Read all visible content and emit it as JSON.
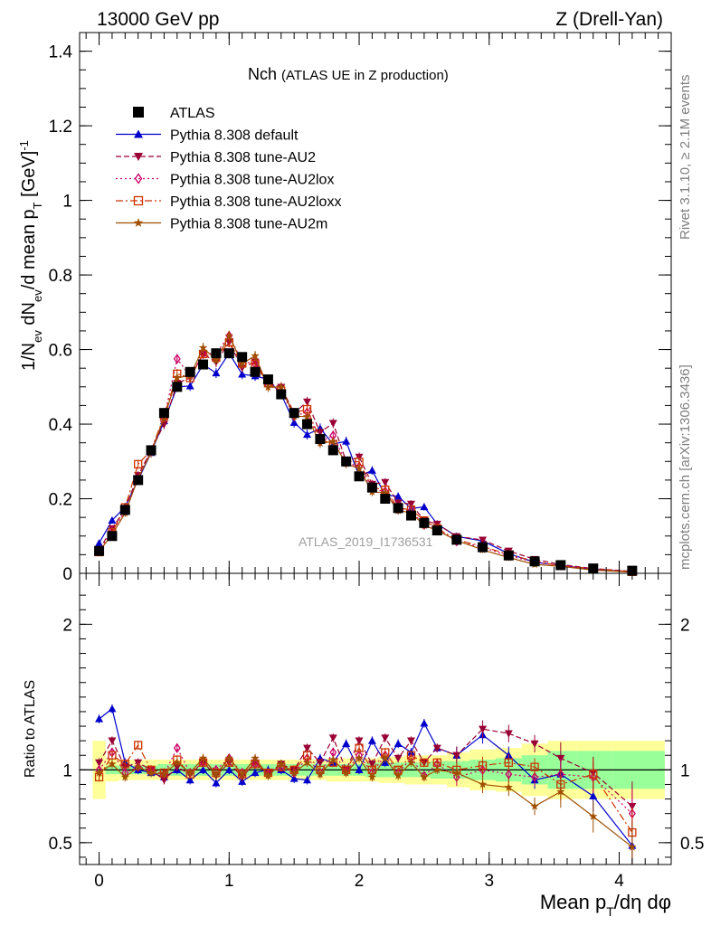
{
  "header": {
    "left": "13000 GeV pp",
    "right": "Z (Drell-Yan)"
  },
  "side_labels": {
    "rivet": "Rivet 3.1.10, ≥ 2.1M events",
    "mcplots": "mcplots.cern.ch [arXiv:1306.3436]"
  },
  "watermark": "ATLAS_2019_I1736531",
  "chart_data": {
    "type": "scatter",
    "title_main": "Nch",
    "title_sub": "(ATLAS UE in Z production)",
    "xlabel": "Mean p_T/dη dφ",
    "ylabel": "1/N_ev dN_ev/d mean p_T [GeV]^-1",
    "ratio_ylabel": "Ratio to ATLAS",
    "xlim": [
      -0.15,
      4.4
    ],
    "ylim": [
      0,
      1.45
    ],
    "ratio_ylim": [
      0.35,
      2.35
    ],
    "x_ticks": [
      "0",
      "1",
      "2",
      "3",
      "4"
    ],
    "y_ticks": [
      "0",
      "0.2",
      "0.4",
      "0.6",
      "0.8",
      "1",
      "1.2",
      "1.4"
    ],
    "ratio_ticks": [
      "0.5",
      "1",
      "2"
    ],
    "legend": [
      "ATLAS",
      "Pythia 8.308 default",
      "Pythia 8.308 tune-AU2",
      "Pythia 8.308 tune-AU2lox",
      "Pythia 8.308 tune-AU2loxx",
      "Pythia 8.308 tune-AU2m"
    ],
    "x": [
      0.0,
      0.1,
      0.2,
      0.3,
      0.4,
      0.5,
      0.6,
      0.7,
      0.8,
      0.9,
      1.0,
      1.1,
      1.2,
      1.3,
      1.4,
      1.5,
      1.6,
      1.7,
      1.8,
      1.9,
      2.0,
      2.1,
      2.2,
      2.3,
      2.4,
      2.5,
      2.6,
      2.75,
      2.95,
      3.15,
      3.35,
      3.55,
      3.8,
      4.1
    ],
    "data": [
      0.06,
      0.1,
      0.17,
      0.25,
      0.33,
      0.43,
      0.5,
      0.54,
      0.56,
      0.59,
      0.59,
      0.58,
      0.54,
      0.52,
      0.48,
      0.43,
      0.4,
      0.36,
      0.33,
      0.3,
      0.26,
      0.23,
      0.2,
      0.175,
      0.155,
      0.135,
      0.115,
      0.09,
      0.07,
      0.048,
      0.032,
      0.022,
      0.013,
      0.007
    ],
    "series": [
      {
        "name": "Pythia 8.308 default",
        "color": "#0000cc",
        "marker": "triangle-up",
        "dash": "solid",
        "ratio": [
          1.35,
          1.42,
          1.05,
          1.0,
          0.98,
          0.95,
          1.0,
          0.93,
          1.0,
          0.91,
          1.0,
          0.92,
          0.98,
          1.0,
          1.0,
          0.94,
          0.93,
          1.08,
          1.05,
          1.18,
          1.0,
          1.2,
          1.05,
          1.18,
          1.12,
          1.32,
          1.15,
          1.1,
          1.24,
          1.1,
          0.93,
          0.97,
          0.82,
          0.48
        ]
      },
      {
        "name": "Pythia 8.308 tune-AU2",
        "color": "#990033",
        "marker": "triangle-down",
        "dash": "dashed",
        "ratio": [
          1.05,
          1.2,
          1.02,
          1.05,
          1.0,
          0.93,
          1.02,
          0.97,
          1.05,
          0.96,
          1.05,
          0.95,
          1.05,
          0.98,
          1.04,
          1.0,
          1.15,
          1.05,
          1.22,
          1.0,
          1.2,
          1.04,
          1.22,
          1.08,
          1.2,
          1.05,
          1.15,
          1.1,
          1.28,
          1.25,
          1.18,
          1.08,
          0.98,
          0.75
        ]
      },
      {
        "name": "Pythia 8.308 tune-AU2lox",
        "color": "#cc0066",
        "marker": "diamond-open",
        "dash": "dotted",
        "ratio": [
          1.0,
          1.12,
          0.98,
          1.02,
          1.0,
          0.97,
          1.15,
          0.98,
          1.05,
          1.0,
          1.08,
          0.98,
          1.04,
          0.97,
          1.02,
          0.98,
          1.08,
          0.98,
          1.12,
          0.99,
          1.1,
          0.98,
          1.1,
          0.98,
          1.08,
          0.96,
          1.04,
          0.95,
          1.0,
          0.97,
          0.95,
          0.97,
          0.95,
          0.7
        ]
      },
      {
        "name": "Pythia 8.308 tune-AU2loxx",
        "color": "#cc3300",
        "marker": "square-open",
        "dash": "dashdot",
        "ratio": [
          0.95,
          1.1,
          1.04,
          1.17,
          1.0,
          0.98,
          1.07,
          0.97,
          1.05,
          0.98,
          1.05,
          0.97,
          1.04,
          0.98,
          1.02,
          1.0,
          1.1,
          1.0,
          1.05,
          1.0,
          1.15,
          1.0,
          1.12,
          1.0,
          1.1,
          1.05,
          1.05,
          1.0,
          1.03,
          1.05,
          1.02,
          0.9,
          0.97,
          0.57
        ]
      },
      {
        "name": "Pythia 8.308 tune-AU2m",
        "color": "#a04e00",
        "marker": "star",
        "dash": "solid",
        "ratio": [
          0.98,
          1.04,
          0.95,
          1.02,
          0.98,
          0.97,
          1.05,
          0.98,
          1.08,
          0.97,
          1.08,
          0.97,
          1.08,
          0.96,
          1.04,
          0.98,
          1.05,
          0.97,
          1.07,
          0.98,
          1.08,
          0.95,
          1.08,
          0.96,
          1.05,
          0.95,
          1.0,
          0.98,
          0.9,
          0.88,
          0.75,
          0.85,
          0.68,
          0.47
        ]
      }
    ],
    "band": {
      "green_half": [
        0.0,
        0.03,
        0.03,
        0.03,
        0.03,
        0.04,
        0.04,
        0.04,
        0.04,
        0.04,
        0.04,
        0.04,
        0.04,
        0.04,
        0.04,
        0.04,
        0.04,
        0.04,
        0.04,
        0.04,
        0.04,
        0.05,
        0.05,
        0.05,
        0.05,
        0.05,
        0.06,
        0.06,
        0.07,
        0.08,
        0.1,
        0.13,
        0.13,
        0.13
      ],
      "yellow_half": [
        0.2,
        0.08,
        0.07,
        0.07,
        0.07,
        0.07,
        0.07,
        0.07,
        0.07,
        0.07,
        0.07,
        0.07,
        0.07,
        0.07,
        0.07,
        0.07,
        0.07,
        0.07,
        0.08,
        0.08,
        0.08,
        0.08,
        0.09,
        0.09,
        0.1,
        0.1,
        0.1,
        0.12,
        0.14,
        0.15,
        0.18,
        0.2,
        0.2,
        0.2
      ]
    }
  }
}
